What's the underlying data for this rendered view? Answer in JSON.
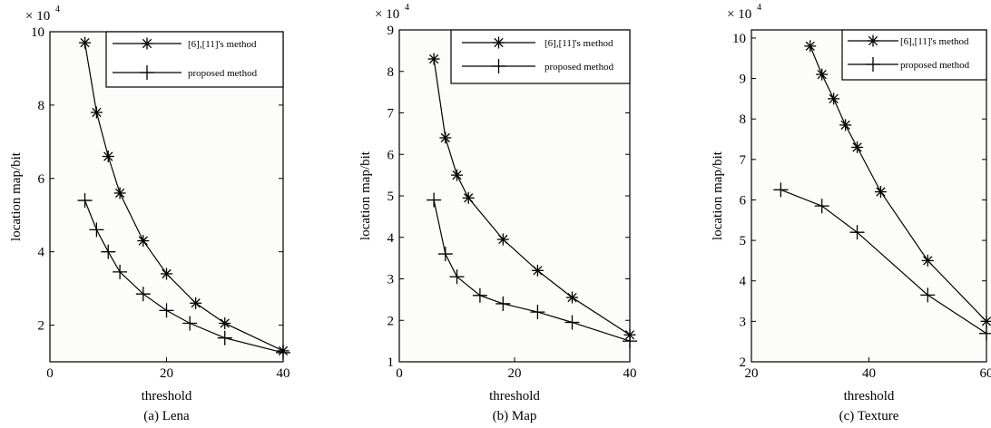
{
  "chart_data": [
    {
      "type": "line",
      "caption": "(a) Lena",
      "xlabel": "threshold",
      "ylabel": "location map/bit",
      "exponent_label": "× 10",
      "exponent_power": "4",
      "xlim": [
        0,
        40
      ],
      "ylim": [
        1,
        10
      ],
      "xticks": [
        0,
        20,
        40
      ],
      "xtick_labels": [
        "0",
        "20",
        "40"
      ],
      "yticks": [
        2,
        4,
        6,
        8,
        10
      ],
      "ytick_labels": [
        "2",
        "4",
        "6",
        "8",
        "10"
      ],
      "grid": false,
      "legend_position": "top-right",
      "series": [
        {
          "name": "[6],[11]'s method",
          "marker": "star",
          "x": [
            6,
            8,
            10,
            12,
            16,
            20,
            25,
            30,
            40
          ],
          "y": [
            9.7,
            7.8,
            6.6,
            5.6,
            4.3,
            3.4,
            2.6,
            2.05,
            1.3
          ]
        },
        {
          "name": "proposed method",
          "marker": "plus",
          "x": [
            6,
            8,
            10,
            12,
            16,
            20,
            24,
            30,
            40
          ],
          "y": [
            5.4,
            4.6,
            4.0,
            3.45,
            2.85,
            2.4,
            2.05,
            1.65,
            1.25
          ]
        }
      ]
    },
    {
      "type": "line",
      "caption": "(b) Map",
      "xlabel": "threshold",
      "ylabel": "location map/bit",
      "exponent_label": "× 10",
      "exponent_power": "4",
      "xlim": [
        0,
        40
      ],
      "ylim": [
        1,
        9
      ],
      "xticks": [
        0,
        20,
        40
      ],
      "xtick_labels": [
        "0",
        "20",
        "40"
      ],
      "yticks": [
        1,
        2,
        3,
        4,
        5,
        6,
        7,
        8,
        9
      ],
      "ytick_labels": [
        "1",
        "2",
        "3",
        "4",
        "5",
        "6",
        "7",
        "8",
        "9"
      ],
      "grid": false,
      "legend_position": "top-right",
      "series": [
        {
          "name": "[6],[11]'s method",
          "marker": "star",
          "x": [
            6,
            8,
            10,
            12,
            18,
            24,
            30,
            40
          ],
          "y": [
            8.3,
            6.4,
            5.5,
            4.95,
            3.95,
            3.2,
            2.55,
            1.65
          ]
        },
        {
          "name": "proposed method",
          "marker": "plus",
          "x": [
            6,
            8,
            10,
            14,
            18,
            24,
            30,
            40
          ],
          "y": [
            4.9,
            3.6,
            3.05,
            2.6,
            2.4,
            2.2,
            1.95,
            1.5
          ]
        }
      ]
    },
    {
      "type": "line",
      "caption": "(c) Texture",
      "xlabel": "threshold",
      "ylabel": "location map/bit",
      "exponent_label": "× 10",
      "exponent_power": "4",
      "xlim": [
        20,
        60
      ],
      "ylim": [
        2,
        10.2
      ],
      "xticks": [
        20,
        40,
        60
      ],
      "xtick_labels": [
        "20",
        "40",
        "60"
      ],
      "yticks": [
        2,
        3,
        4,
        5,
        6,
        7,
        8,
        9,
        10
      ],
      "ytick_labels": [
        "2",
        "3",
        "4",
        "5",
        "6",
        "7",
        "8",
        "9",
        "10"
      ],
      "grid": false,
      "legend_position": "top-right",
      "series": [
        {
          "name": "[6],[11]'s method",
          "marker": "star",
          "x": [
            30,
            32,
            34,
            36,
            38,
            42,
            50,
            60
          ],
          "y": [
            9.8,
            9.1,
            8.5,
            7.85,
            7.3,
            6.2,
            4.5,
            3.0
          ]
        },
        {
          "name": "proposed method",
          "marker": "plus",
          "x": [
            25,
            32,
            38,
            50,
            60
          ],
          "y": [
            6.25,
            5.85,
            5.2,
            3.65,
            2.7
          ]
        }
      ]
    }
  ]
}
